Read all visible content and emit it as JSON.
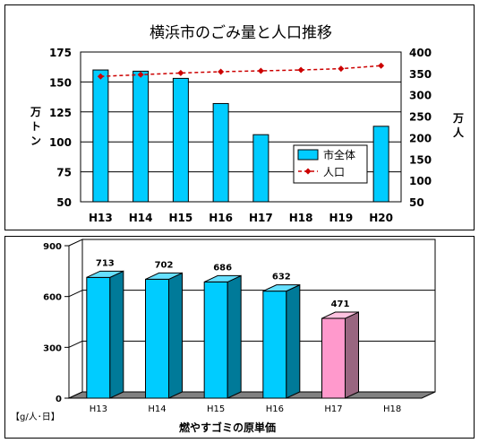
{
  "chart_data": [
    {
      "type": "bar",
      "title": "横浜市のごみ量と人口推移",
      "categories": [
        "H13",
        "H14",
        "H15",
        "H16",
        "H17",
        "H18",
        "H19",
        "H20"
      ],
      "series": [
        {
          "name": "市全体",
          "kind": "bar",
          "axis": "left",
          "values": [
            160,
            159,
            153,
            132,
            106,
            null,
            null,
            113
          ],
          "color": "#00ccff"
        },
        {
          "name": "人口",
          "kind": "line",
          "axis": "right",
          "values": [
            343,
            347,
            351,
            354,
            356,
            358,
            361,
            368
          ],
          "color": "#cc0000"
        }
      ],
      "ylabel": "万トン",
      "y2label": "万人",
      "ylim": [
        50,
        175
      ],
      "yticks": [
        50,
        75,
        100,
        125,
        150,
        175
      ],
      "y2lim": [
        50,
        400
      ],
      "y2ticks": [
        50,
        100,
        150,
        200,
        250,
        300,
        350,
        400
      ],
      "grid": true,
      "legend": "right"
    },
    {
      "type": "bar",
      "title": "燃やすゴミの原単価",
      "categories": [
        "H13",
        "H14",
        "H15",
        "H16",
        "H17",
        "H18"
      ],
      "values": [
        713,
        702,
        686,
        632,
        471,
        null
      ],
      "data_labels": [
        "713",
        "702",
        "686",
        "632",
        "471",
        ""
      ],
      "colors": [
        "#00ccff",
        "#00ccff",
        "#00ccff",
        "#00ccff",
        "#ff99cc",
        "#00ccff"
      ],
      "ylabel": "【g/人･日】",
      "ylim": [
        0,
        900
      ],
      "yticks": [
        0,
        300,
        600,
        900
      ],
      "grid": true,
      "style": "3d"
    }
  ]
}
